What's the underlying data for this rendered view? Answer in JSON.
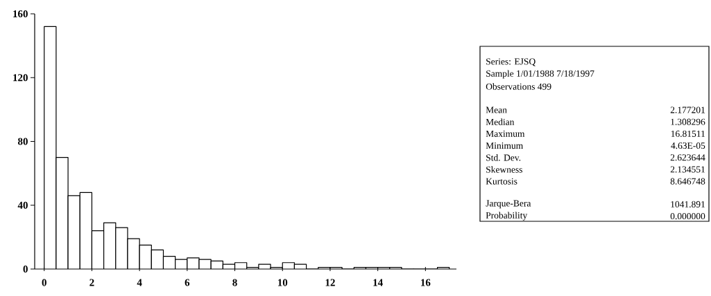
{
  "chart_data": {
    "type": "histogram",
    "bins": [
      0,
      0.5,
      1,
      1.5,
      2,
      2.5,
      3,
      3.5,
      4,
      4.5,
      5,
      5.5,
      6,
      6.5,
      7,
      7.5,
      8,
      8.5,
      9,
      9.5,
      10,
      10.5,
      11,
      11.5,
      12,
      12.5,
      13,
      13.5,
      14,
      14.5,
      15,
      15.5,
      16,
      16.5,
      17
    ],
    "values": [
      152,
      70,
      46,
      48,
      24,
      29,
      26,
      19,
      15,
      12,
      8,
      6,
      7,
      6,
      5,
      3,
      4,
      1,
      3,
      1,
      4,
      3,
      0,
      1,
      1,
      0,
      1,
      1,
      1,
      1,
      0,
      0,
      0,
      1
    ],
    "xlim": [
      -0.4,
      17.3
    ],
    "ylim": [
      0,
      160
    ],
    "xticks": [
      0,
      2,
      4,
      6,
      8,
      10,
      12,
      14,
      16
    ],
    "yticks": [
      0,
      40,
      80,
      120,
      160
    ],
    "grid": false,
    "annotations": [
      "Series: EJSQ",
      "Sample 1/01/1988  7/18/1997",
      "Observations 499",
      "Mean",
      "2.177201",
      "Median",
      "1.308296",
      "Maximum",
      "16.81511",
      "Minimum",
      "4.63E-05",
      "Std. Dev.",
      "2.623644",
      "Skewness",
      "2.134551",
      "Kurtosis",
      "8.646748",
      "Jarque-Bera",
      "1041.891",
      "Probability",
      "0.000000"
    ]
  }
}
